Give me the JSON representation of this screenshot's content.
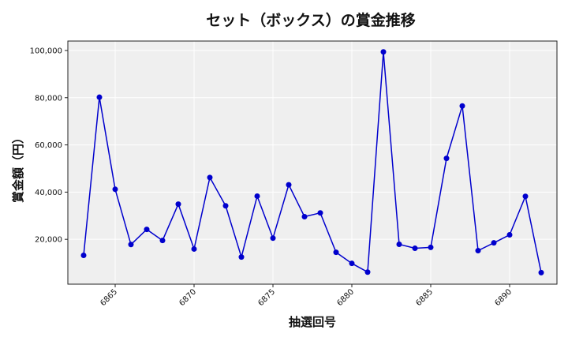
{
  "chart_data": {
    "type": "line",
    "title": "セット（ボックス）の賞金推移",
    "xlabel": "抽選回号",
    "ylabel": "賞金額（円）",
    "xlim": [
      6862,
      6893
    ],
    "ylim": [
      1000,
      104000
    ],
    "x_ticks": [
      6865,
      6870,
      6875,
      6880,
      6885,
      6890
    ],
    "y_ticks": [
      20000,
      40000,
      60000,
      80000,
      100000
    ],
    "y_tick_labels": [
      "20,000",
      "40,000",
      "60,000",
      "80,000",
      "100,000"
    ],
    "grid": true,
    "line_color": "#0000cd",
    "background_color": "#efefef",
    "series": [
      {
        "x": [
          6863,
          6864,
          6865,
          6866,
          6867,
          6868,
          6869,
          6870,
          6871,
          6872,
          6873,
          6874,
          6875,
          6876,
          6877,
          6878,
          6879,
          6880,
          6881,
          6882,
          6883,
          6884,
          6885,
          6886,
          6887,
          6888,
          6889,
          6890,
          6891,
          6892
        ],
        "values": [
          13200,
          80200,
          41200,
          17800,
          24200,
          19500,
          34900,
          15900,
          46200,
          34200,
          12500,
          38300,
          20500,
          43100,
          29600,
          31200,
          14500,
          9800,
          6100,
          99400,
          17900,
          16200,
          16600,
          54300,
          76500,
          15200,
          18500,
          21900,
          38200,
          5900
        ]
      }
    ]
  }
}
